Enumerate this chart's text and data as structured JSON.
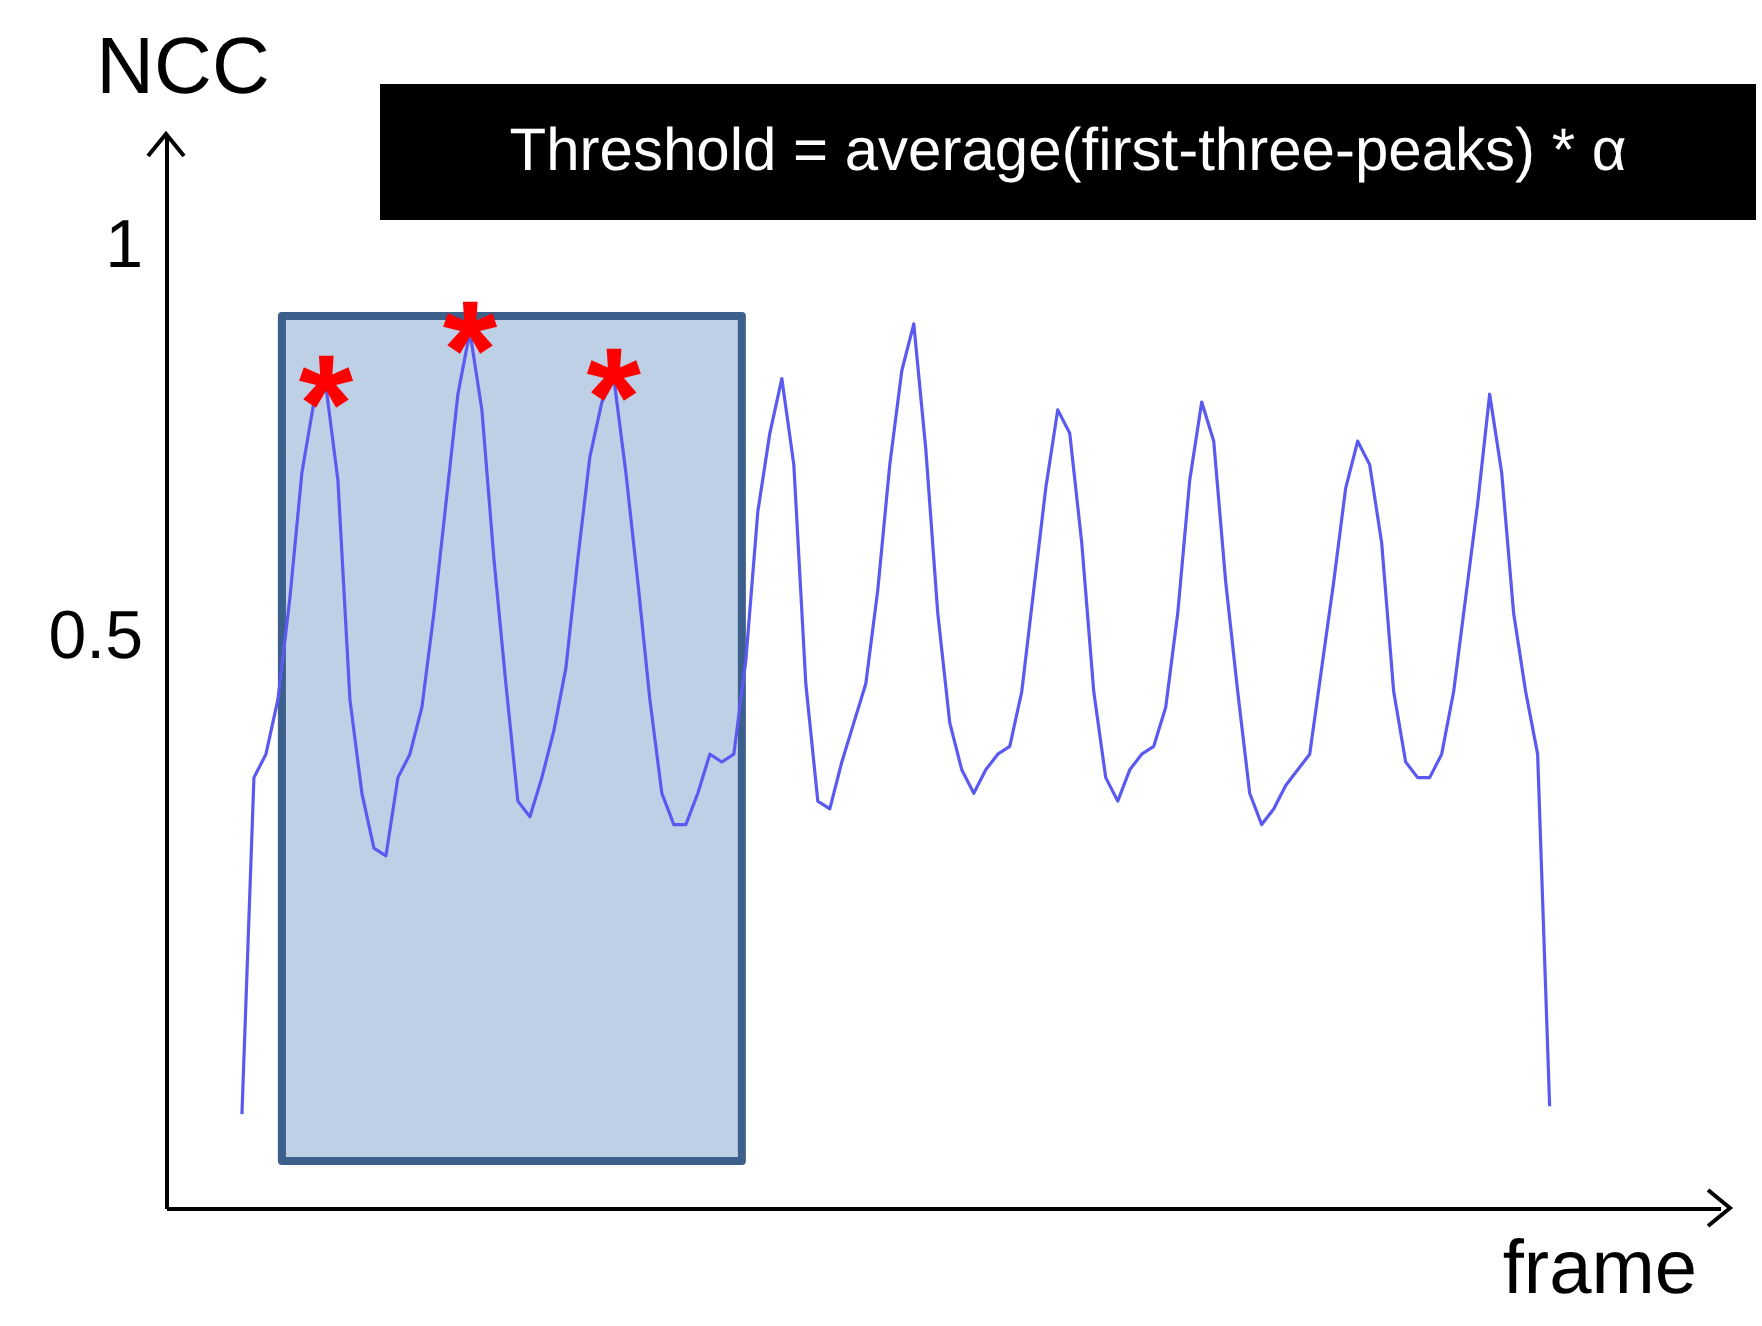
{
  "chart_data": {
    "type": "line",
    "ylabel": "NCC",
    "xlabel": "frame",
    "annotations": [
      "Threshold = average(first-three-peaks) * α",
      {
        "text": "*",
        "y": 0.82
      },
      {
        "text": "*",
        "y": 0.89
      },
      {
        "text": "*",
        "y": 0.83
      }
    ],
    "categories": [
      null,
      null,
      null,
      null,
      null,
      null,
      null,
      null,
      null,
      null,
      null,
      null,
      null,
      null,
      null,
      null,
      null,
      null,
      null,
      null,
      null,
      null,
      null,
      null,
      null,
      null,
      null,
      null,
      null,
      null,
      null,
      null,
      null,
      null,
      null,
      null,
      null,
      null,
      null,
      null,
      null,
      null,
      null,
      null,
      null,
      null,
      null,
      null,
      null,
      null,
      null,
      null,
      null,
      null,
      null,
      null,
      null,
      null,
      null,
      null,
      null,
      null,
      null,
      null,
      null,
      null,
      null,
      null,
      null,
      null,
      null,
      null,
      null,
      null,
      null,
      null,
      null,
      null,
      null,
      null,
      null,
      null,
      null,
      null,
      null,
      null,
      null,
      null,
      null,
      null,
      null,
      null,
      null,
      null,
      null,
      null,
      null,
      null,
      null,
      null,
      null,
      null,
      null,
      null,
      null,
      null,
      null,
      null,
      null,
      null
    ],
    "series": [
      {
        "color": "#5a5af0",
        "values": [
          -0.11,
          0.32,
          0.35,
          0.42,
          0.55,
          0.71,
          0.8,
          0.82,
          0.7,
          0.42,
          0.3,
          0.23,
          0.22,
          0.32,
          0.35,
          0.41,
          0.53,
          0.67,
          0.81,
          0.89,
          0.79,
          0.6,
          0.44,
          0.29,
          0.27,
          0.32,
          0.38,
          0.46,
          0.6,
          0.73,
          0.8,
          0.83,
          0.71,
          0.57,
          0.42,
          0.3,
          0.26,
          0.26,
          0.3,
          0.35,
          0.34,
          0.35,
          0.47,
          0.66,
          0.76,
          0.83,
          0.72,
          0.44,
          0.29,
          0.28,
          0.34,
          0.39,
          0.44,
          0.56,
          0.72,
          0.84,
          0.9,
          0.74,
          0.53,
          0.39,
          0.33,
          0.3,
          0.33,
          0.35,
          0.36,
          0.43,
          0.56,
          0.69,
          0.79,
          0.76,
          0.62,
          0.43,
          0.32,
          0.29,
          0.33,
          0.35,
          0.36,
          0.41,
          0.53,
          0.7,
          0.8,
          0.75,
          0.57,
          0.43,
          0.3,
          0.26,
          0.28,
          0.31,
          0.33,
          0.35,
          0.46,
          0.57,
          0.69,
          0.75,
          0.72,
          0.62,
          0.43,
          0.34,
          0.32,
          0.32,
          0.35,
          0.43,
          0.55,
          0.67,
          0.81,
          0.71,
          0.53,
          0.43,
          0.35,
          -0.1
        ]
      }
    ],
    "ylim": [
      -0.23,
      1.14
    ],
    "yticks": [
      0.5,
      1
    ],
    "tick_labels": "y",
    "grid": false,
    "line_style": "solid",
    "marker": "none"
  }
}
